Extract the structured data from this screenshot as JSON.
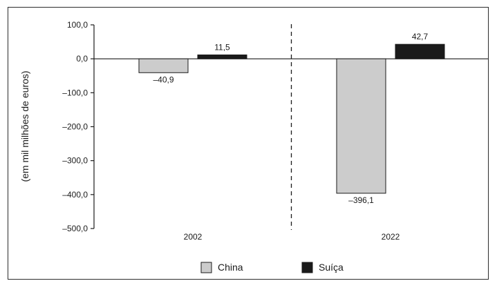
{
  "chart_data": {
    "type": "bar",
    "categories": [
      "2002",
      "2022"
    ],
    "series": [
      {
        "name": "China",
        "values": [
          -40.9,
          -396.1
        ],
        "color": "#cccccc",
        "value_labels": [
          "–40,9",
          "–396,1"
        ]
      },
      {
        "name": "Suíça",
        "values": [
          11.5,
          42.7
        ],
        "color": "#1a1a1a",
        "value_labels": [
          "11,5",
          "42,7"
        ]
      }
    ],
    "ylabel": "(em mil milhões de euros)",
    "ylim": [
      -500,
      100
    ],
    "y_ticks": [
      100,
      0,
      -100,
      -200,
      -300,
      -400,
      -500
    ],
    "y_tick_labels": [
      "100,0",
      "0,0",
      "–100,0",
      "–200,0",
      "–300,0",
      "–400,0",
      "–500,0"
    ],
    "separator": "dashed vertical line between categories",
    "grid": false,
    "legend_position": "bottom-center"
  }
}
